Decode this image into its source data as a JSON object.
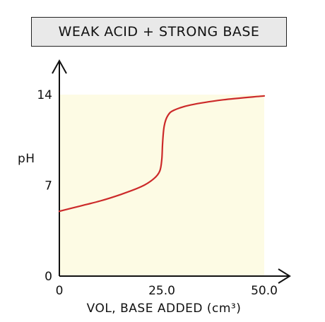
{
  "chart_data": {
    "type": "line",
    "title": "WEAK ACID + STRONG BASE",
    "xlabel": "VOL, BASE ADDED (cm³)",
    "ylabel": "pH",
    "xlim": [
      0,
      50
    ],
    "ylim": [
      0,
      14
    ],
    "x_ticks": [
      {
        "value": 0,
        "label": "0"
      },
      {
        "value": 25,
        "label": "25.0"
      },
      {
        "value": 50,
        "label": "50.0"
      }
    ],
    "y_ticks": [
      {
        "value": 0,
        "label": "0"
      },
      {
        "value": 7,
        "label": "7"
      },
      {
        "value": 14,
        "label": "14"
      }
    ],
    "series": [
      {
        "color": "#cc2a2a",
        "points": [
          [
            0,
            5.0
          ],
          [
            5,
            5.4
          ],
          [
            10,
            5.8
          ],
          [
            15,
            6.3
          ],
          [
            20,
            6.9
          ],
          [
            23,
            7.5
          ],
          [
            24.5,
            8.1
          ],
          [
            25,
            9.0
          ],
          [
            25.2,
            10.3
          ],
          [
            25.6,
            11.6
          ],
          [
            26.5,
            12.4
          ],
          [
            28,
            12.8
          ],
          [
            32,
            13.2
          ],
          [
            40,
            13.6
          ],
          [
            50,
            13.9
          ]
        ]
      }
    ],
    "plot_background": "#fdfbe4",
    "grid": false
  }
}
